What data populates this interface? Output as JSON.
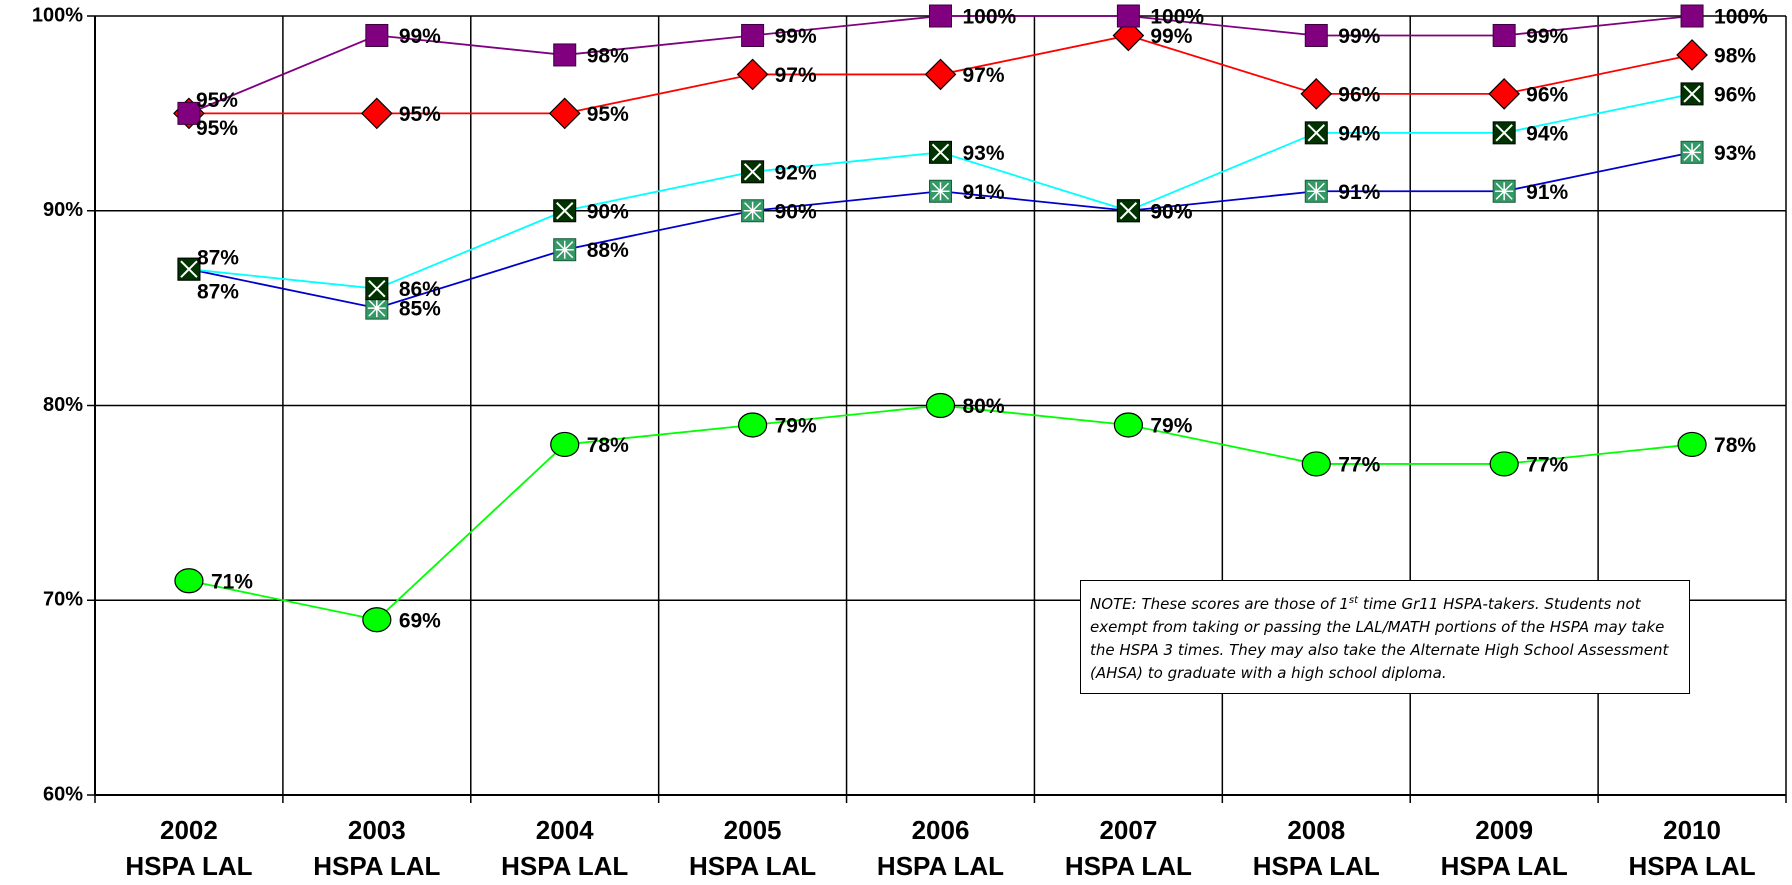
{
  "chart_data": {
    "type": "line",
    "categories": [
      "2002\nHSPA LAL",
      "2003\nHSPA LAL",
      "2004\nHSPA LAL",
      "2005\nHSPA LAL",
      "2006\nHSPA LAL",
      "2007\nHSPA LAL",
      "2008\nHSPA LAL",
      "2009\nHSPA LAL",
      "2010\nHSPA LAL"
    ],
    "series": [
      {
        "color": "#00ff00",
        "marker": "circle",
        "marker_color": "#00ff00",
        "values": [
          71,
          69,
          78,
          79,
          80,
          79,
          77,
          77,
          78
        ],
        "value_labels": [
          "71%",
          "69%",
          "78%",
          "79%",
          "80%",
          "79%",
          "77%",
          "77%",
          "78%"
        ]
      },
      {
        "color": "#0000cc",
        "marker": "asterisk",
        "marker_color": "#339966",
        "values": [
          87,
          85,
          88,
          90,
          91,
          90,
          91,
          91,
          93
        ],
        "value_labels": [
          "87%",
          "85%",
          "88%",
          "90%",
          "91%",
          "90%",
          "91%",
          "91%",
          "93%"
        ]
      },
      {
        "color": "#00ffff",
        "marker": "xbox",
        "marker_color": "#003300",
        "values": [
          87,
          86,
          90,
          92,
          93,
          90,
          94,
          94,
          96
        ],
        "value_labels": [
          "87%",
          "86%",
          "90%",
          "92%",
          "93%",
          "90%",
          "94%",
          "94%",
          "96%"
        ]
      },
      {
        "color": "#ff0000",
        "marker": "diamond",
        "marker_color": "#ff0000",
        "values": [
          95,
          95,
          95,
          97,
          97,
          99,
          96,
          96,
          98
        ],
        "value_labels": [
          "95%",
          "95%",
          "95%",
          "97%",
          "97%",
          "99%",
          "96%",
          "96%",
          "98%"
        ]
      },
      {
        "color": "#800080",
        "marker": "square",
        "marker_color": "#800080",
        "values": [
          95,
          99,
          98,
          99,
          100,
          100,
          99,
          99,
          100
        ],
        "value_labels": [
          "95%",
          "99%",
          "98%",
          "99%",
          "100%",
          "100%",
          "99%",
          "99%",
          "100%"
        ]
      }
    ],
    "ylim": [
      60,
      100
    ],
    "yticks": [
      {
        "value": 60,
        "label": "60%"
      },
      {
        "value": 70,
        "label": "70%"
      },
      {
        "value": 80,
        "label": "80%"
      },
      {
        "value": 90,
        "label": "90%"
      },
      {
        "value": 100,
        "label": "100%"
      }
    ],
    "grid": true,
    "note": [
      "NOTE: These scores are those of 1",
      "st",
      " time Gr11 HSPA-takers. Students not exempt from taking or passing the LAL/MATH portions of the HSPA may take the HSPA 3 times. They may also take the Alternate High School Assessment (AHSA) to graduate with a high school diploma."
    ]
  }
}
